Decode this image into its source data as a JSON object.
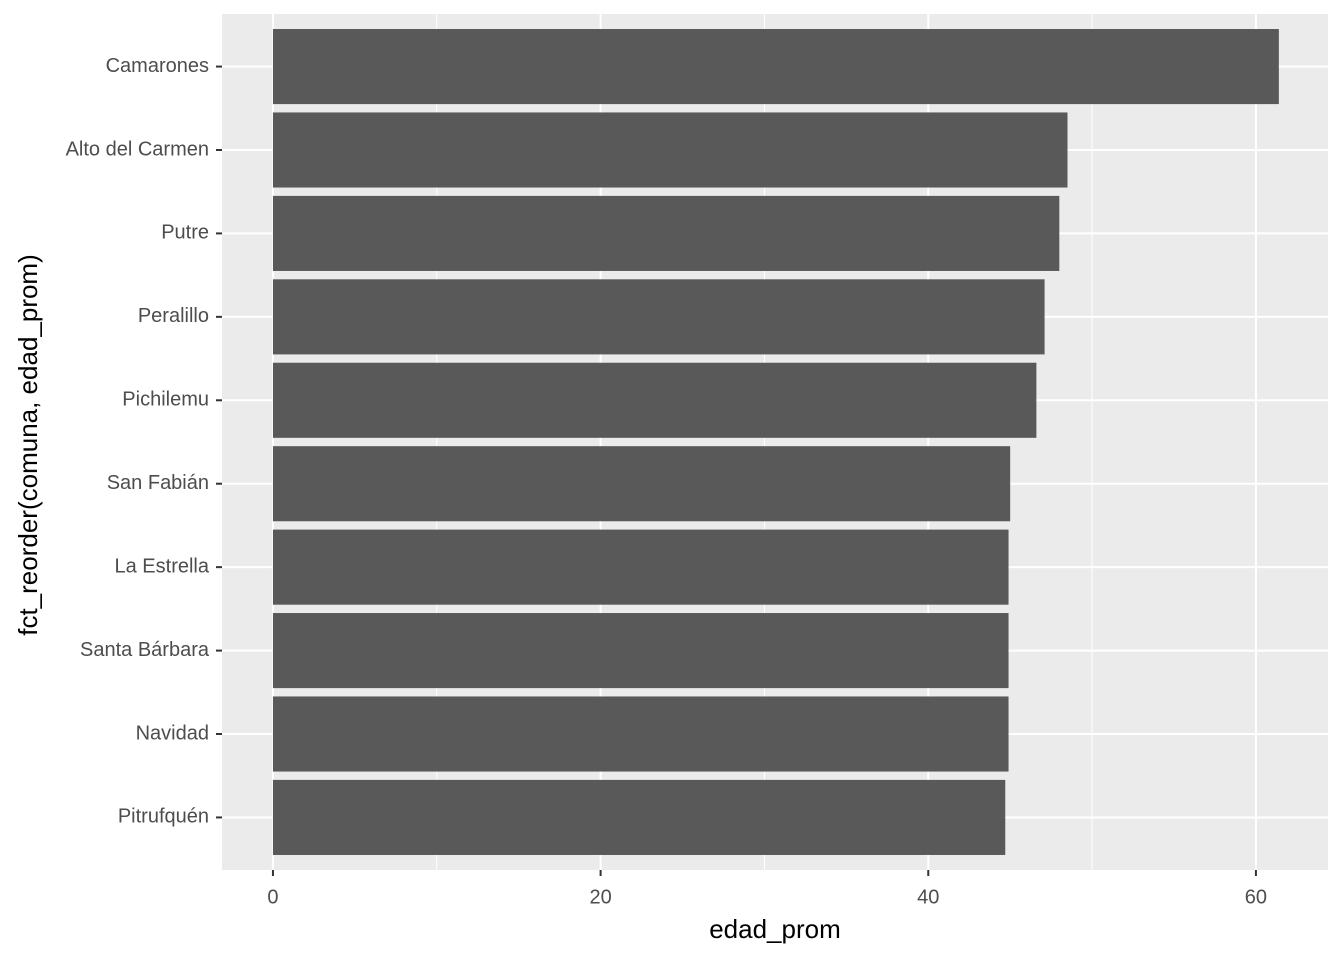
{
  "chart_data": {
    "type": "bar",
    "orientation": "horizontal",
    "x_label": "edad_prom",
    "y_label": "fct_reorder(comuna, edad_prom)",
    "categories": [
      "Camarones",
      "Alto del Carmen",
      "Putre",
      "Peralillo",
      "Pichilemu",
      "San Fabián",
      "La Estrella",
      "Santa Bárbara",
      "Navidad",
      "Pitrufquén"
    ],
    "values": [
      61.4,
      48.5,
      48.0,
      47.1,
      46.6,
      45.0,
      44.9,
      44.9,
      44.9,
      44.7
    ],
    "color": "#595959",
    "xlim": [
      -3.11,
      64.4
    ],
    "xticks": [
      0,
      20,
      40,
      60
    ],
    "grid": true
  }
}
